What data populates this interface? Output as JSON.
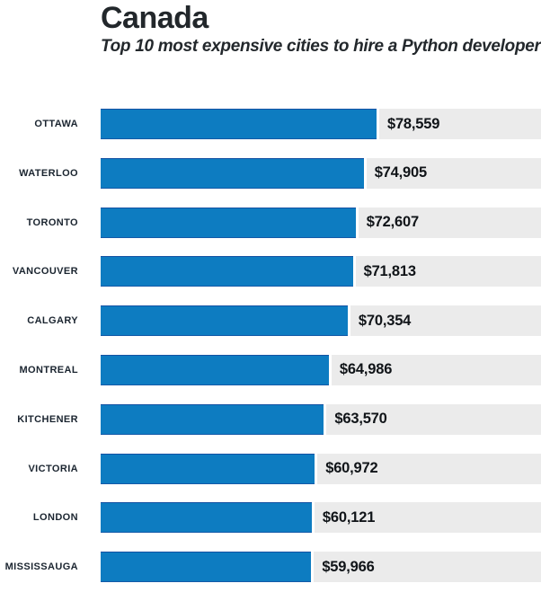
{
  "header": {
    "title": "Canada",
    "subtitle": "Top 10 most expensive cities to hire a Python developer"
  },
  "chart_data": {
    "type": "bar",
    "orientation": "horizontal",
    "title": "Canada",
    "subtitle": "Top 10 most expensive cities to hire a Python developer",
    "categories": [
      "OTTAWA",
      "WATERLOO",
      "TORONTO",
      "VANCOUVER",
      "CALGARY",
      "MONTREAL",
      "KITCHENER",
      "VICTORIA",
      "LONDON",
      "MISSISSAUGA"
    ],
    "values": [
      78559,
      74905,
      72607,
      71813,
      70354,
      64986,
      63570,
      60972,
      60121,
      59966
    ],
    "value_labels": [
      "$78,559",
      "$74,905",
      "$72,607",
      "$71,813",
      "$70,354",
      "$64,986",
      "$63,570",
      "$60,972",
      "$60,121",
      "$59,966"
    ],
    "xlim": [
      0,
      125400
    ],
    "grid": false,
    "legend": false,
    "bar_color": "#0d7cc1",
    "track_color": "#ebebeb",
    "text_color": "#22272b"
  }
}
